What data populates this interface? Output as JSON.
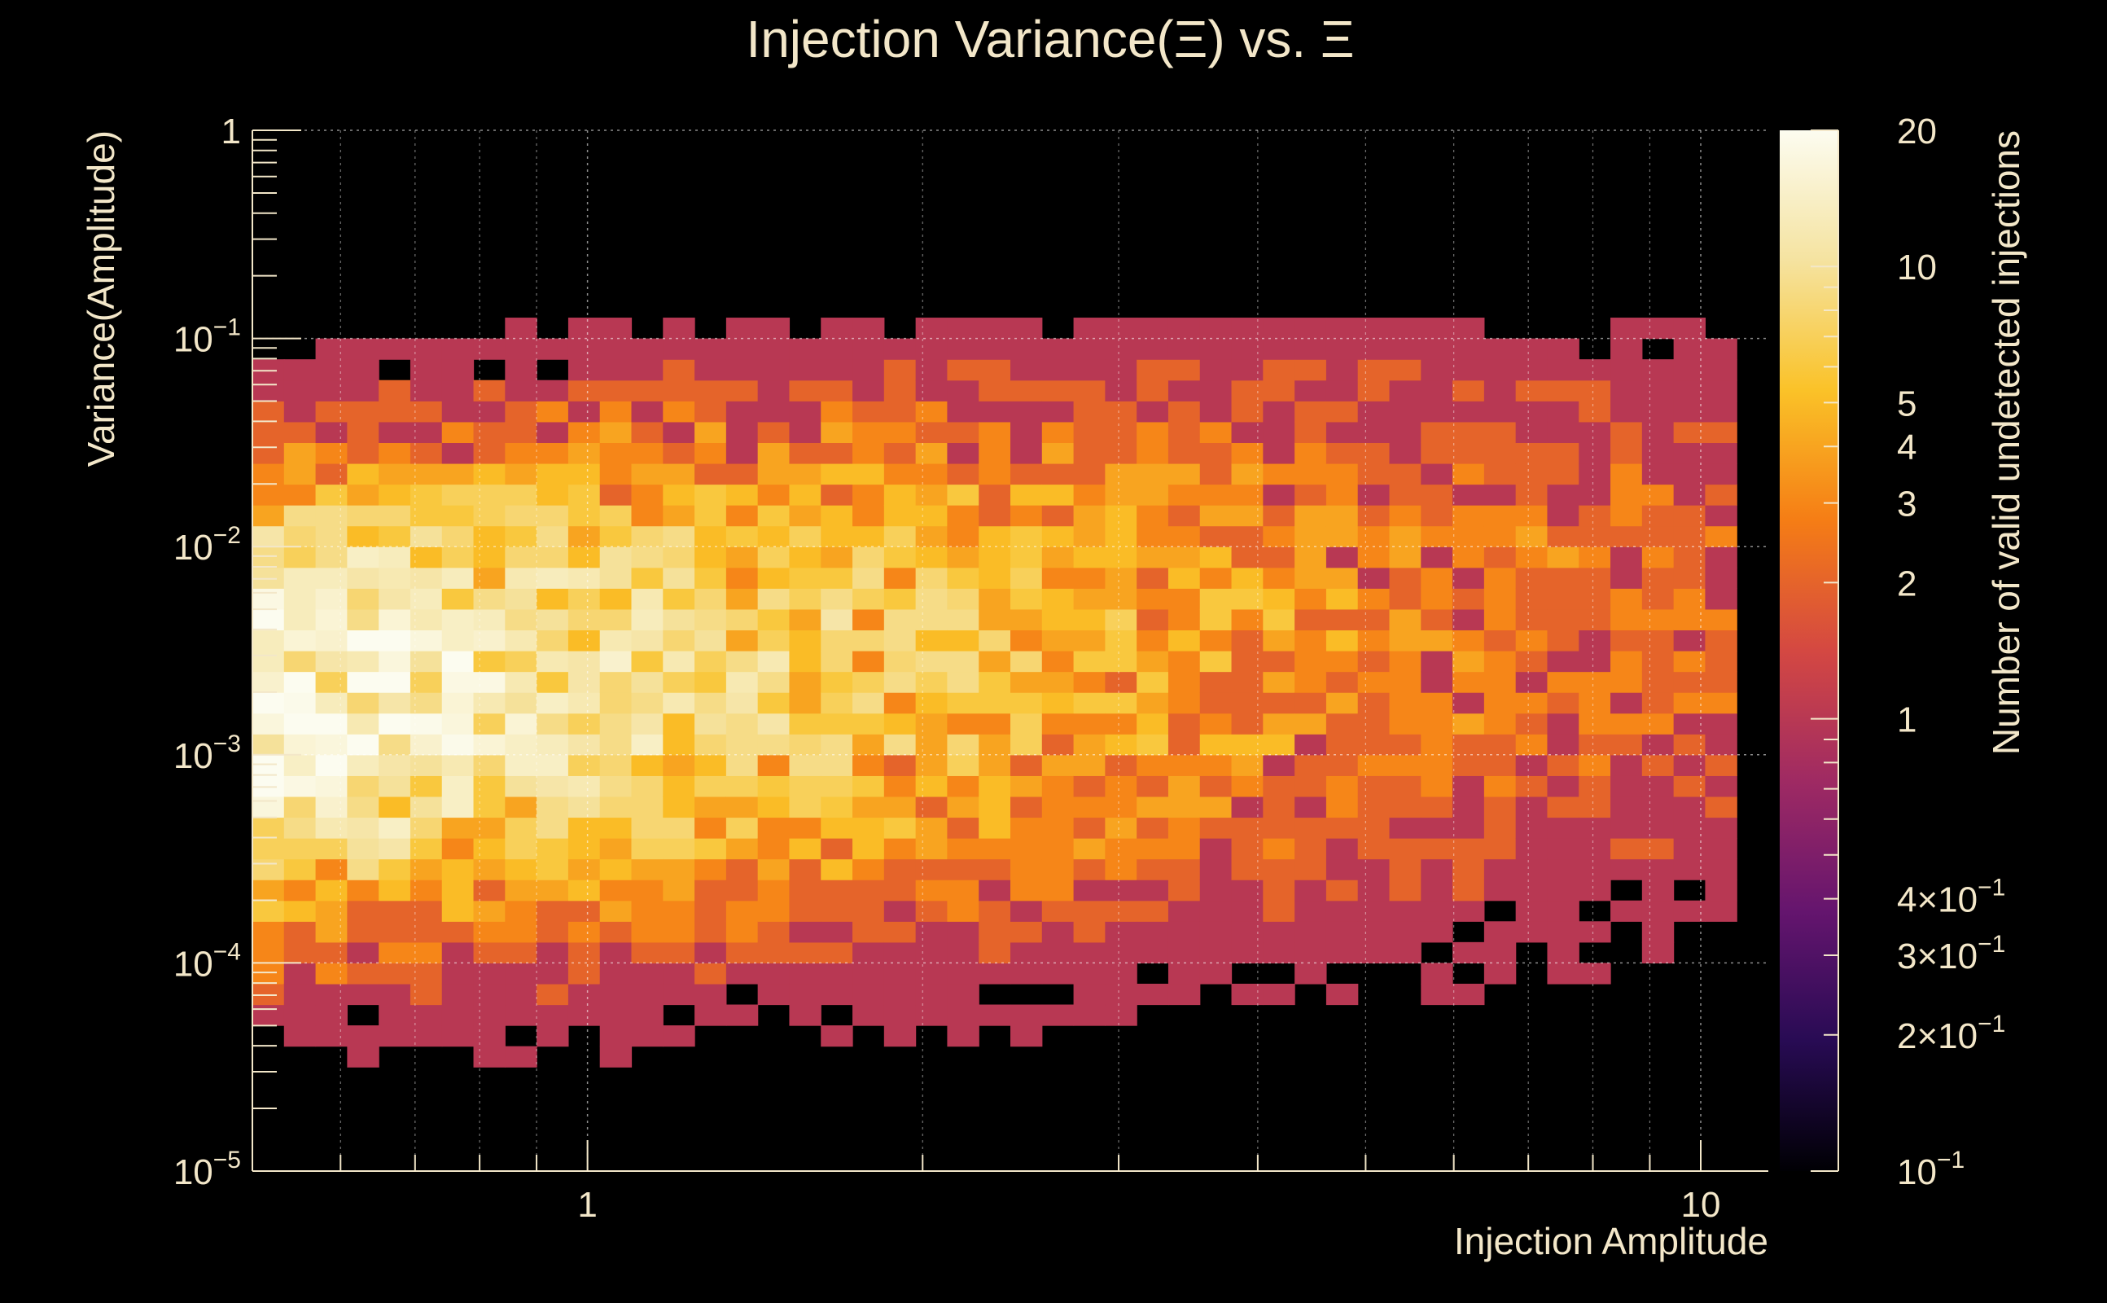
{
  "chart_data": {
    "type": "heatmap",
    "title": "Injection Variance(Ξ) vs. Ξ",
    "xlabel": "Injection Amplitude",
    "ylabel": "Variance(Amplitude)",
    "zlabel": "Number of valid undetected injections",
    "xscale": "log",
    "yscale": "log",
    "zscale": "log",
    "xlim": [
      0.5,
      11.5
    ],
    "ylim": [
      1e-05,
      1
    ],
    "zlim": [
      0.1,
      20
    ],
    "grid": true,
    "colormap": [
      "#000004",
      "#280b54",
      "#65156e",
      "#9f2a63",
      "#d44842",
      "#f57d15",
      "#fac228",
      "#f5e3a0",
      "#fcfcf0"
    ],
    "x_tick_labels": [
      {
        "value": 1,
        "label": "1"
      },
      {
        "value": 10,
        "label": "10"
      }
    ],
    "y_tick_labels": [
      {
        "value": 1,
        "base": "1",
        "exp": ""
      },
      {
        "value": 0.1,
        "base": "10",
        "exp": "−1"
      },
      {
        "value": 0.01,
        "base": "10",
        "exp": "−2"
      },
      {
        "value": 0.001,
        "base": "10",
        "exp": "−3"
      },
      {
        "value": 0.0001,
        "base": "10",
        "exp": "−4"
      },
      {
        "value": 1e-05,
        "base": "10",
        "exp": "−5"
      }
    ],
    "z_tick_labels": [
      {
        "value": 20,
        "base": "20",
        "exp": ""
      },
      {
        "value": 10,
        "base": "10",
        "exp": ""
      },
      {
        "value": 5,
        "base": "5",
        "exp": ""
      },
      {
        "value": 4,
        "base": "4",
        "exp": ""
      },
      {
        "value": 3,
        "base": "3",
        "exp": ""
      },
      {
        "value": 2,
        "base": "2",
        "exp": ""
      },
      {
        "value": 1,
        "base": "1",
        "exp": ""
      },
      {
        "value": 0.4,
        "base": "4×10",
        "exp": "−1"
      },
      {
        "value": 0.3,
        "base": "3×10",
        "exp": "−1"
      },
      {
        "value": 0.2,
        "base": "2×10",
        "exp": "−1"
      },
      {
        "value": 0.1,
        "base": "10",
        "exp": "−1"
      }
    ],
    "bins": {
      "x_edges": [
        0.5,
        11.5
      ],
      "nx": 48,
      "y_edges": [
        1e-05,
        1
      ],
      "ny": 50,
      "cells": "Per-bin counts (1 to about 20) are estimated from the colour of each cell in the figure. The densest cells sit near x 0.5 to 0.8, y 5e-4 to 2e-3 (peak about 20 near x 0.52, y 7e-4). Counts fall off towards larger amplitude and towards very low and very high variance; the rightmost occupied bins reach about x 10.5, and the empty bins show black."
    }
  }
}
